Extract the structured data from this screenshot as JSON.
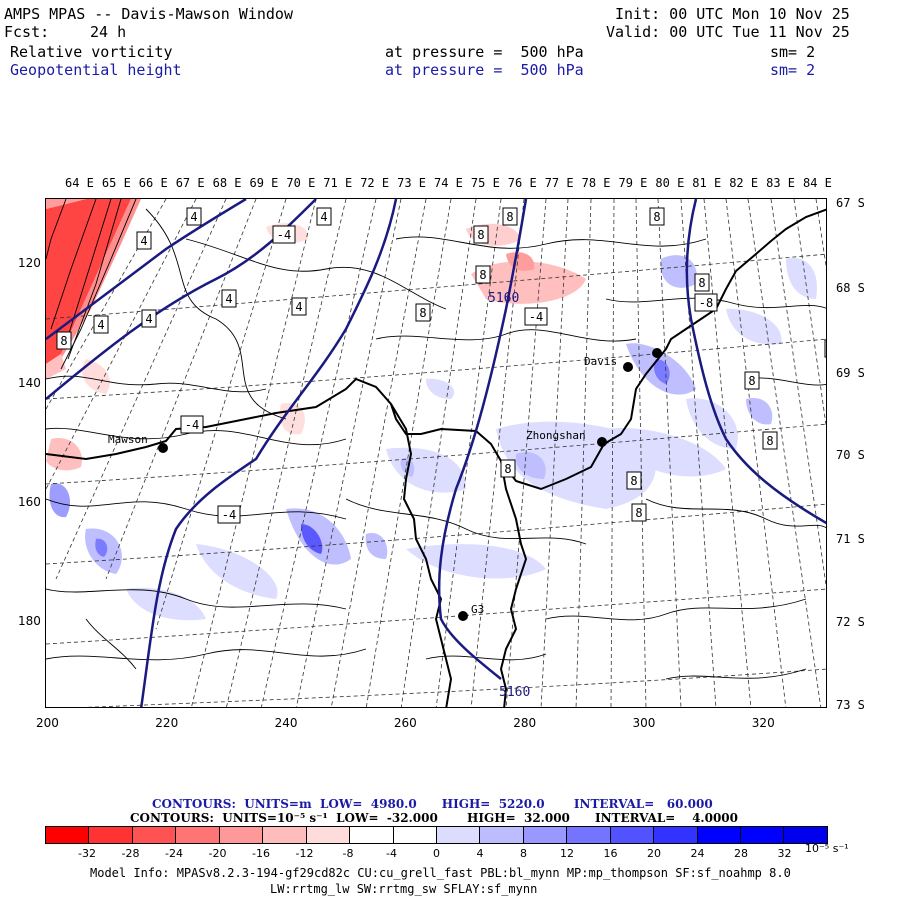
{
  "header": {
    "title": "AMPS MPAS -- Davis-Mawson Window",
    "init": "Init: 00 UTC Mon 10 Nov 25",
    "fcst_label": "Fcst:",
    "fcst_value": "24 h",
    "valid": "Valid: 00 UTC Tue 11 Nov 25",
    "field1": {
      "name": "Relative vorticity",
      "level": "at pressure =  500 hPa",
      "smooth": "sm= 2"
    },
    "field2": {
      "name": "Geopotential height",
      "level": "at pressure =  500 hPa",
      "smooth": "sm= 2"
    }
  },
  "map": {
    "lon_labels": [
      "64 E",
      "65 E",
      "66 E",
      "67 E",
      "68 E",
      "69 E",
      "70 E",
      "71 E",
      "72 E",
      "73 E",
      "74 E",
      "75 E",
      "76 E",
      "77 E",
      "78 E",
      "79 E",
      "80 E",
      "81 E",
      "82 E",
      "83 E",
      "84 E"
    ],
    "lat_labels": [
      "67 S",
      "68 S",
      "69 S",
      "70 S",
      "71 S",
      "72 S",
      "73 S"
    ],
    "y_ticks": [
      "120",
      "140",
      "160",
      "180"
    ],
    "x_ticks": [
      "200",
      "220",
      "240",
      "260",
      "280",
      "300",
      "320"
    ],
    "stations": [
      {
        "name": "Mawson"
      },
      {
        "name": "Davis"
      },
      {
        "name": "Zhongshan"
      },
      {
        "name": "G3"
      }
    ],
    "height_contour_labels": [
      "5160",
      "5160"
    ],
    "vorticity_labels": [
      "4",
      "4",
      "4",
      "4",
      "4",
      "4",
      "4",
      "-4",
      "-4",
      "-4",
      "-4",
      "-4",
      "8",
      "8",
      "8",
      "8",
      "8",
      "8",
      "8",
      "8",
      "8",
      "8",
      "8",
      "8",
      "-8"
    ]
  },
  "contours_info": {
    "height": "CONTOURS:  UNITS=m  LOW=  4980.0      HIGH=  5220.0       INTERVAL=   60.000",
    "vorticity": "CONTOURS:  UNITS=10⁻⁵ s⁻¹  LOW=  -32.000       HIGH=  32.000      INTERVAL=    4.0000"
  },
  "colorbar": {
    "colors": [
      "#ff0000",
      "#ff3333",
      "#ff5252",
      "#ff7474",
      "#ff9898",
      "#ffbcbc",
      "#ffdcdc",
      "#ffffff",
      "#ffffff",
      "#dcdcff",
      "#bcbcff",
      "#9898ff",
      "#7474ff",
      "#5252ff",
      "#3333ff",
      "#0000ff",
      "#0000ff",
      "#0000ee"
    ],
    "tick_labels": [
      "-32",
      "-28",
      "-24",
      "-20",
      "-16",
      "-12",
      "-8",
      "-4",
      "0",
      "4",
      "8",
      "12",
      "16",
      "20",
      "24",
      "28",
      "32"
    ],
    "units": "10⁻⁵ s⁻¹"
  },
  "model_info": {
    "line1": "Model Info: MPASv8.2.3-194-gf29cd82c CU:cu_grell_fast PBL:bl_mynn MP:mp_thompson SF:sf_noahmp 8.0",
    "line2": "LW:rrtmg_lw SW:rrtmg_sw SFLAY:sf_mynn"
  },
  "colors": {
    "height_contour": "#1a1a80",
    "label_blue": "#1a1aa6"
  }
}
